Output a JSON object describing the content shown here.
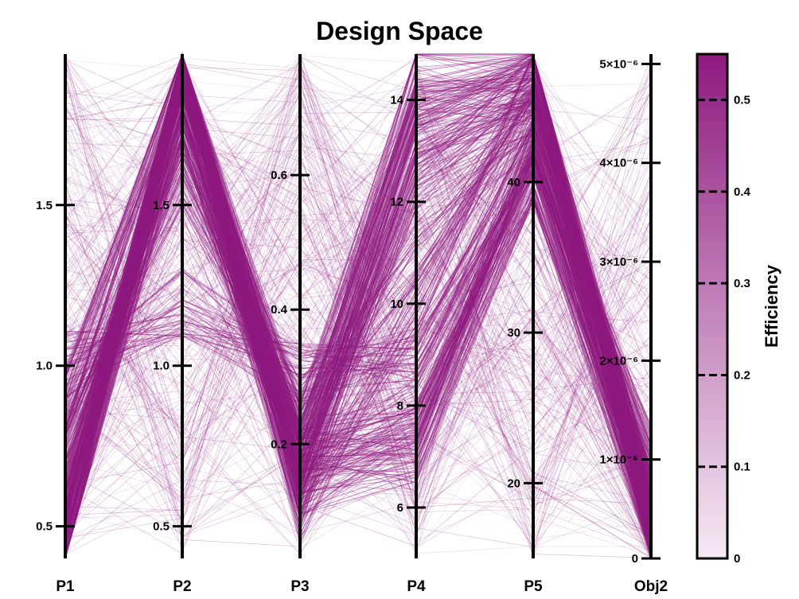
{
  "chart_data": {
    "type": "parallel-coordinates",
    "title": "Design Space",
    "line_color": "#8e1a7f",
    "axes": [
      {
        "name": "P1",
        "range": [
          0.4,
          1.97
        ],
        "ticks": [
          {
            "v": 0.5,
            "label": "0.5"
          },
          {
            "v": 1.0,
            "label": "1.0"
          },
          {
            "v": 1.5,
            "label": "1.5"
          }
        ]
      },
      {
        "name": "P2",
        "range": [
          0.4,
          1.97
        ],
        "ticks": [
          {
            "v": 0.5,
            "label": "0.5"
          },
          {
            "v": 1.0,
            "label": "1.0"
          },
          {
            "v": 1.5,
            "label": "1.5"
          }
        ]
      },
      {
        "name": "P3",
        "range": [
          0.03,
          0.78
        ],
        "ticks": [
          {
            "v": 0.2,
            "label": "0.2"
          },
          {
            "v": 0.4,
            "label": "0.4"
          },
          {
            "v": 0.6,
            "label": "0.6"
          }
        ]
      },
      {
        "name": "P4",
        "range": [
          5.0,
          14.9
        ],
        "ticks": [
          {
            "v": 6,
            "label": "6"
          },
          {
            "v": 8,
            "label": "8"
          },
          {
            "v": 10,
            "label": "10"
          },
          {
            "v": 12,
            "label": "12"
          },
          {
            "v": 14,
            "label": "14"
          }
        ]
      },
      {
        "name": "P5",
        "range": [
          15.0,
          48.5
        ],
        "ticks": [
          {
            "v": 20,
            "label": "20"
          },
          {
            "v": 30,
            "label": "30"
          },
          {
            "v": 40,
            "label": "40"
          }
        ]
      },
      {
        "name": "Obj2",
        "range": [
          0,
          5.1e-06
        ],
        "ticks": [
          {
            "v": 0,
            "label": "0"
          },
          {
            "v": 1e-06,
            "label": "1×10⁻⁶"
          },
          {
            "v": 2e-06,
            "label": "2×10⁻⁶"
          },
          {
            "v": 3e-06,
            "label": "3×10⁻⁶"
          },
          {
            "v": 4e-06,
            "label": "4×10⁻⁶"
          },
          {
            "v": 5e-06,
            "label": "5×10⁻⁶"
          }
        ]
      }
    ],
    "colorbar": {
      "label": "Efficiency",
      "range": [
        0,
        0.55
      ],
      "ticks": [
        {
          "v": 0,
          "label": "0"
        },
        {
          "v": 0.1,
          "label": "0.1"
        },
        {
          "v": 0.2,
          "label": "0.2"
        },
        {
          "v": 0.3,
          "label": "0.3"
        },
        {
          "v": 0.4,
          "label": "0.4"
        },
        {
          "v": 0.5,
          "label": "0.5"
        }
      ],
      "color_low": "#f6eaf4",
      "color_high": "#8e1a7f"
    },
    "dominant_paths": [
      [
        0.5,
        1.9,
        0.22,
        14.5,
        48.0,
        5e-07
      ],
      [
        0.6,
        1.85,
        0.18,
        14.0,
        46.0,
        4e-07
      ],
      [
        0.9,
        1.95,
        0.15,
        13.0,
        47.0,
        3e-07
      ],
      [
        0.45,
        1.8,
        0.12,
        12.5,
        45.0,
        6e-07
      ],
      [
        0.55,
        1.9,
        0.2,
        8.0,
        40.0,
        3.5e-07
      ],
      [
        0.7,
        1.7,
        0.17,
        7.5,
        42.0,
        4.5e-07
      ],
      [
        0.5,
        1.95,
        0.14,
        7.0,
        41.0,
        3e-07
      ],
      [
        0.8,
        1.6,
        0.25,
        11.0,
        44.0,
        8e-07
      ],
      [
        0.42,
        1.9,
        0.1,
        10.0,
        47.5,
        2e-07
      ],
      [
        1.0,
        1.2,
        0.3,
        9.0,
        43.0,
        1e-06
      ]
    ],
    "num_samples": 700
  }
}
